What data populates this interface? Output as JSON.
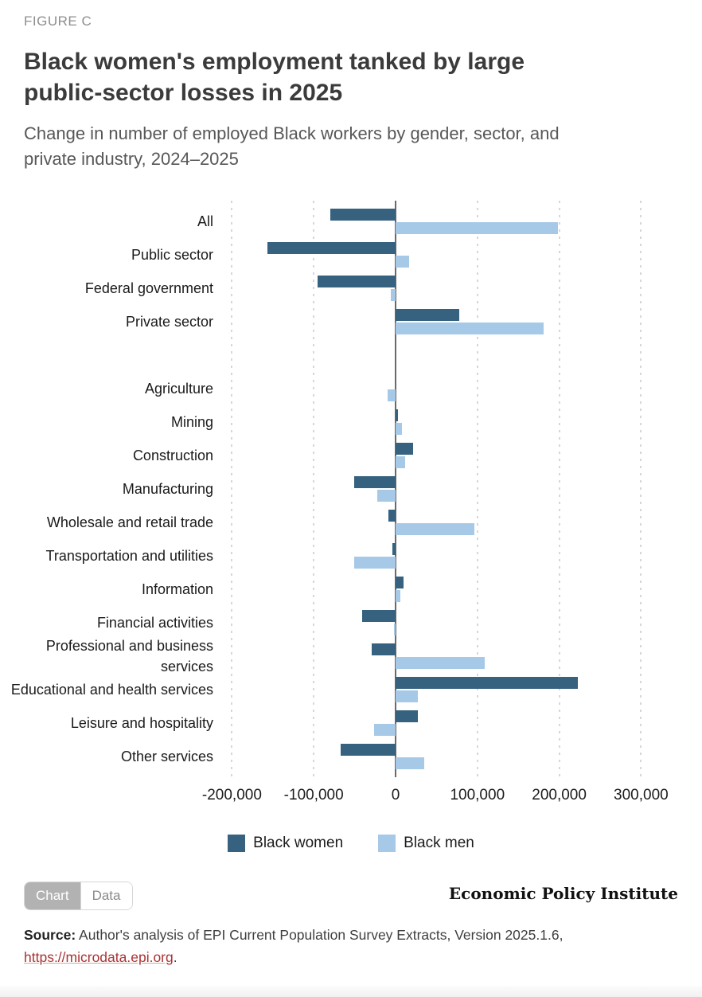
{
  "figure_label": "FIGURE C",
  "title": "Black women's employment tanked by large public-sector losses in 2025",
  "subtitle": "Change in number of employed Black workers by gender, sector, and private industry, 2024–2025",
  "chart_data": {
    "type": "bar",
    "orientation": "horizontal",
    "title": "Black women's employment tanked by large public-sector losses in 2025",
    "subtitle": "Change in number of employed Black workers by gender, sector, and private industry, 2024–2025",
    "categories": [
      "All",
      "Public sector",
      "Federal government",
      "Private sector",
      "Agriculture",
      "Mining",
      "Construction",
      "Manufacturing",
      "Wholesale and retail trade",
      "Transportation and utilities",
      "Information",
      "Financial activities",
      "Professional and business services",
      "Educational and health services",
      "Leisure and hospitality",
      "Other services"
    ],
    "series": [
      {
        "name": "Black women",
        "color": "#36617F",
        "values": [
          -80000,
          -157000,
          -95000,
          78000,
          0,
          3000,
          21000,
          -51000,
          -9000,
          -4000,
          10000,
          -41000,
          -29000,
          223000,
          27000,
          -67000
        ]
      },
      {
        "name": "Black men",
        "color": "#A7C9E8",
        "values": [
          198000,
          17000,
          -6000,
          181000,
          -10000,
          8000,
          12000,
          -22000,
          96000,
          -51000,
          6000,
          -2000,
          109000,
          27000,
          -26000,
          35000
        ]
      }
    ],
    "spacer_after_index": 3,
    "x_ticks": [
      -200000,
      -100000,
      0,
      100000,
      200000,
      300000
    ],
    "x_tick_labels": [
      "-200,000",
      "-100,000",
      "0",
      "100,000",
      "200,000",
      "300,000"
    ],
    "xlim": [
      -208000,
      306000
    ],
    "xlabel": "",
    "ylabel": "",
    "grid": "dotted vertical gridlines at each 100,000",
    "legend_position": "bottom-center"
  },
  "legend": {
    "items": [
      {
        "label": "Black women",
        "color": "#36617F"
      },
      {
        "label": "Black men",
        "color": "#A7C9E8"
      }
    ]
  },
  "toolbar": {
    "chart_label": "Chart",
    "data_label": "Data",
    "active_tab": "Chart"
  },
  "branding": {
    "wordmark": "Economic Policy Institute"
  },
  "source": {
    "prefix": "Source:",
    "text": " Author's analysis of EPI Current Population Survey Extracts, Version 2025.1.6,",
    "link": "https://microdata.epi.org",
    "suffix": "."
  },
  "colors": {
    "black_women": "#36617F",
    "black_men": "#A7C9E8",
    "zero_axis": "#6a6a6a",
    "gridline": "#d7d7d7",
    "link_red": "#a93434"
  }
}
